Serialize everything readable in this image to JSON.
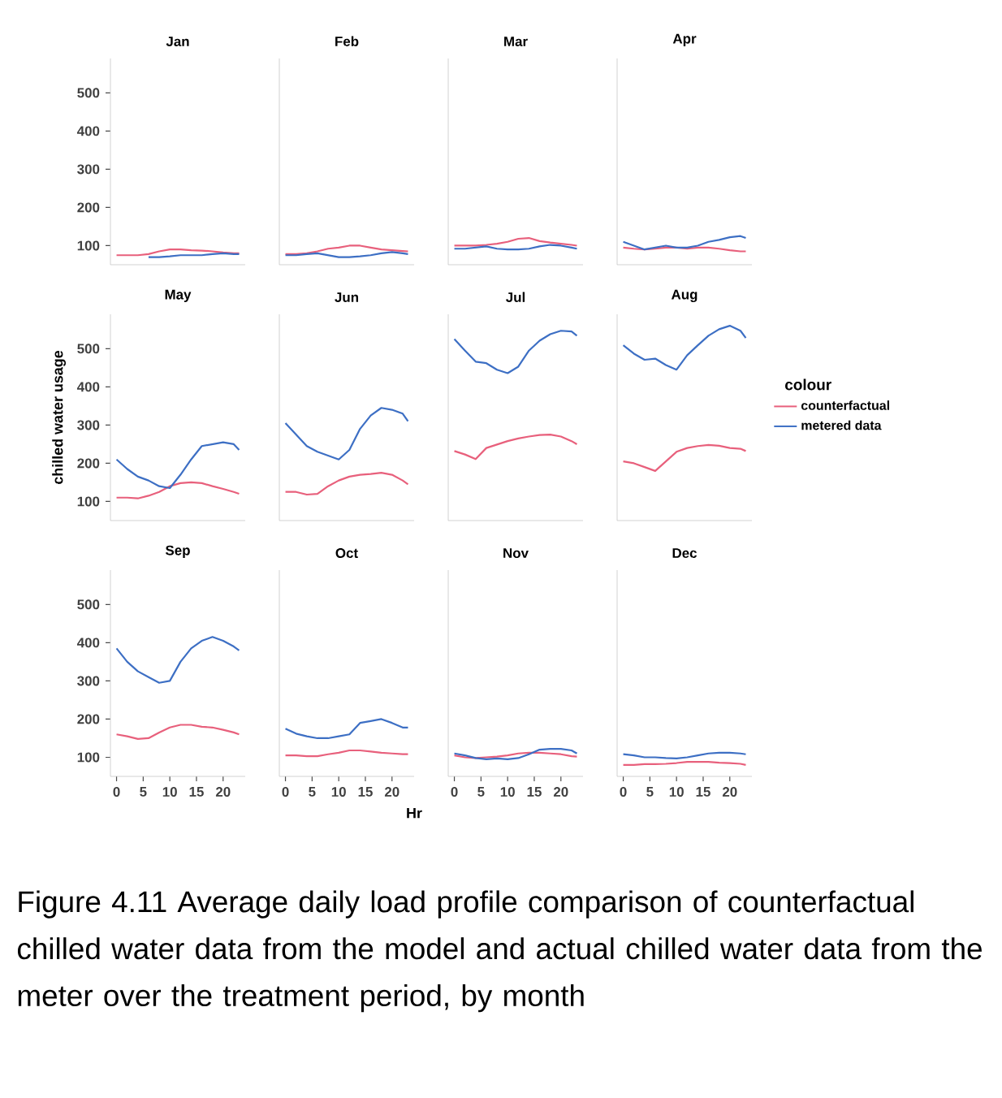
{
  "chart_data": [
    {
      "type": "line",
      "title": "Jan",
      "x": [
        0,
        2,
        4,
        6,
        8,
        10,
        12,
        14,
        16,
        18,
        20,
        22,
        23
      ],
      "xlim": [
        -1.15,
        24.15
      ],
      "ylim": [
        50,
        590
      ],
      "xticks": [
        0,
        5,
        10,
        15,
        20
      ],
      "yticks": [
        100,
        200,
        300,
        400,
        500
      ],
      "tick_labels": "y",
      "series": [
        {
          "color": "#e8607c",
          "values": [
            75,
            75,
            75,
            78,
            85,
            90,
            90,
            88,
            87,
            85,
            82,
            80,
            80
          ]
        },
        {
          "color": "#3d6fc4",
          "values": [
            null,
            null,
            null,
            70,
            70,
            72,
            75,
            75,
            75,
            78,
            80,
            78,
            78
          ]
        }
      ]
    },
    {
      "type": "line",
      "title": "Feb",
      "x": [
        0,
        2,
        4,
        6,
        8,
        10,
        12,
        14,
        16,
        18,
        20,
        22,
        23
      ],
      "xlim": [
        -1.15,
        24.15
      ],
      "ylim": [
        50,
        590
      ],
      "xticks": [
        0,
        5,
        10,
        15,
        20
      ],
      "yticks": [
        100,
        200,
        300,
        400,
        500
      ],
      "tick_labels": false,
      "series": [
        {
          "color": "#e8607c",
          "values": [
            78,
            78,
            80,
            85,
            92,
            95,
            100,
            100,
            95,
            90,
            88,
            86,
            85
          ]
        },
        {
          "color": "#3d6fc4",
          "values": [
            75,
            75,
            78,
            80,
            75,
            70,
            70,
            72,
            75,
            80,
            83,
            80,
            78
          ]
        }
      ]
    },
    {
      "type": "line",
      "title": "Mar",
      "x": [
        0,
        2,
        4,
        6,
        8,
        10,
        12,
        14,
        16,
        18,
        20,
        22,
        23
      ],
      "xlim": [
        -1.15,
        24.15
      ],
      "ylim": [
        50,
        590
      ],
      "xticks": [
        0,
        5,
        10,
        15,
        20
      ],
      "yticks": [
        100,
        200,
        300,
        400,
        500
      ],
      "tick_labels": false,
      "series": [
        {
          "color": "#e8607c",
          "values": [
            100,
            100,
            100,
            102,
            105,
            110,
            118,
            120,
            112,
            108,
            105,
            102,
            100
          ]
        },
        {
          "color": "#3d6fc4",
          "values": [
            92,
            92,
            95,
            98,
            92,
            90,
            90,
            92,
            98,
            102,
            100,
            95,
            92
          ]
        }
      ]
    },
    {
      "type": "line",
      "title": "Apr",
      "x": [
        0,
        2,
        4,
        6,
        8,
        10,
        12,
        14,
        16,
        18,
        20,
        22,
        23
      ],
      "xlim": [
        -1.15,
        24.15
      ],
      "ylim": [
        50,
        590
      ],
      "xticks": [
        0,
        5,
        10,
        15,
        20
      ],
      "yticks": [
        100,
        200,
        300,
        400,
        500
      ],
      "tick_labels": false,
      "series": [
        {
          "color": "#e8607c",
          "values": [
            95,
            92,
            90,
            92,
            95,
            95,
            92,
            95,
            95,
            92,
            88,
            85,
            85
          ]
        },
        {
          "color": "#3d6fc4",
          "values": [
            110,
            100,
            90,
            95,
            100,
            95,
            95,
            100,
            110,
            115,
            122,
            125,
            120
          ]
        }
      ]
    },
    {
      "type": "line",
      "title": "May",
      "ylabel": "chilled water usage",
      "x": [
        0,
        2,
        4,
        6,
        8,
        10,
        12,
        14,
        16,
        18,
        20,
        22,
        23
      ],
      "xlim": [
        -1.15,
        24.15
      ],
      "ylim": [
        50,
        590
      ],
      "xticks": [
        0,
        5,
        10,
        15,
        20
      ],
      "yticks": [
        100,
        200,
        300,
        400,
        500
      ],
      "tick_labels": "y",
      "series": [
        {
          "color": "#e8607c",
          "values": [
            110,
            110,
            108,
            115,
            125,
            140,
            148,
            150,
            148,
            140,
            133,
            125,
            120
          ]
        },
        {
          "color": "#3d6fc4",
          "values": [
            210,
            185,
            165,
            155,
            140,
            135,
            170,
            210,
            245,
            250,
            255,
            250,
            235
          ]
        }
      ]
    },
    {
      "type": "line",
      "title": "Jun",
      "x": [
        0,
        2,
        4,
        6,
        8,
        10,
        12,
        14,
        16,
        18,
        20,
        22,
        23
      ],
      "xlim": [
        -1.15,
        24.15
      ],
      "ylim": [
        50,
        590
      ],
      "xticks": [
        0,
        5,
        10,
        15,
        20
      ],
      "yticks": [
        100,
        200,
        300,
        400,
        500
      ],
      "tick_labels": false,
      "series": [
        {
          "color": "#e8607c",
          "values": [
            125,
            125,
            118,
            120,
            140,
            155,
            165,
            170,
            172,
            175,
            170,
            155,
            145
          ]
        },
        {
          "color": "#3d6fc4",
          "values": [
            305,
            275,
            245,
            230,
            220,
            210,
            235,
            290,
            325,
            345,
            340,
            330,
            310
          ]
        }
      ]
    },
    {
      "type": "line",
      "title": "Jul",
      "x": [
        0,
        2,
        4,
        6,
        8,
        10,
        12,
        14,
        16,
        18,
        20,
        22,
        23
      ],
      "xlim": [
        -1.15,
        24.15
      ],
      "ylim": [
        50,
        590
      ],
      "xticks": [
        0,
        5,
        10,
        15,
        20
      ],
      "yticks": [
        100,
        200,
        300,
        400,
        500
      ],
      "tick_labels": false,
      "series": [
        {
          "color": "#e8607c",
          "values": [
            232,
            223,
            211,
            240,
            249,
            258,
            265,
            270,
            274,
            275,
            270,
            258,
            250
          ]
        },
        {
          "color": "#3d6fc4",
          "values": [
            525,
            495,
            466,
            462,
            445,
            436,
            453,
            495,
            521,
            538,
            547,
            545,
            534
          ]
        }
      ]
    },
    {
      "type": "line",
      "title": "Aug",
      "legend_title": "colour",
      "legend": "right",
      "x": [
        0,
        2,
        4,
        6,
        8,
        10,
        12,
        14,
        16,
        18,
        20,
        22,
        23
      ],
      "xlim": [
        -1.15,
        24.15
      ],
      "ylim": [
        50,
        590
      ],
      "xticks": [
        0,
        5,
        10,
        15,
        20
      ],
      "yticks": [
        100,
        200,
        300,
        400,
        500
      ],
      "tick_labels": false,
      "series": [
        {
          "name": "counterfactual",
          "color": "#e8607c",
          "values": [
            205,
            200,
            190,
            180,
            205,
            230,
            240,
            245,
            248,
            246,
            240,
            238,
            232
          ]
        },
        {
          "name": "metered data",
          "color": "#3d6fc4",
          "values": [
            509,
            487,
            471,
            474,
            457,
            445,
            483,
            509,
            534,
            551,
            560,
            547,
            528
          ]
        }
      ]
    },
    {
      "type": "line",
      "title": "Sep",
      "x": [
        0,
        2,
        4,
        6,
        8,
        10,
        12,
        14,
        16,
        18,
        20,
        22,
        23
      ],
      "xlim": [
        -1.15,
        24.15
      ],
      "ylim": [
        50,
        590
      ],
      "xticks": [
        0,
        5,
        10,
        15,
        20
      ],
      "yticks": [
        100,
        200,
        300,
        400,
        500
      ],
      "series": [
        {
          "color": "#e8607c",
          "values": [
            160,
            155,
            148,
            150,
            165,
            178,
            185,
            185,
            180,
            178,
            172,
            165,
            160
          ]
        },
        {
          "color": "#3d6fc4",
          "values": [
            385,
            350,
            325,
            310,
            295,
            300,
            350,
            385,
            405,
            415,
            405,
            390,
            380
          ]
        }
      ]
    },
    {
      "type": "line",
      "title": "Oct",
      "xlabel": "Hr",
      "x": [
        0,
        2,
        4,
        6,
        8,
        10,
        12,
        14,
        16,
        18,
        20,
        22,
        23
      ],
      "xlim": [
        -1.15,
        24.15
      ],
      "ylim": [
        50,
        590
      ],
      "xticks": [
        0,
        5,
        10,
        15,
        20
      ],
      "yticks": [
        100,
        200,
        300,
        400,
        500
      ],
      "tick_labels": "x",
      "series": [
        {
          "color": "#e8607c",
          "values": [
            105,
            105,
            103,
            103,
            108,
            112,
            118,
            118,
            115,
            112,
            110,
            108,
            108
          ]
        },
        {
          "color": "#3d6fc4",
          "values": [
            175,
            162,
            155,
            150,
            150,
            155,
            160,
            190,
            195,
            200,
            190,
            178,
            178
          ]
        }
      ]
    },
    {
      "type": "line",
      "title": "Nov",
      "x": [
        0,
        2,
        4,
        6,
        8,
        10,
        12,
        14,
        16,
        18,
        20,
        22,
        23
      ],
      "xlim": [
        -1.15,
        24.15
      ],
      "ylim": [
        50,
        590
      ],
      "xticks": [
        0,
        5,
        10,
        15,
        20
      ],
      "yticks": [
        100,
        200,
        300,
        400,
        500
      ],
      "tick_labels": "x",
      "series": [
        {
          "color": "#e8607c",
          "values": [
            105,
            100,
            98,
            100,
            102,
            105,
            110,
            112,
            112,
            110,
            108,
            103,
            102
          ]
        },
        {
          "color": "#3d6fc4",
          "values": [
            110,
            105,
            98,
            95,
            97,
            95,
            98,
            108,
            120,
            122,
            122,
            118,
            110
          ]
        }
      ]
    },
    {
      "type": "line",
      "title": "Dec",
      "annotations": [
        "Figure 4.11 Average daily load profile comparison of counterfactual chilled water data from the model and actual chilled water data from the meter over the treatment period, by month"
      ],
      "x": [
        0,
        2,
        4,
        6,
        8,
        10,
        12,
        14,
        16,
        18,
        20,
        22,
        23
      ],
      "xlim": [
        -1.15,
        24.15
      ],
      "ylim": [
        50,
        590
      ],
      "xticks": [
        0,
        5,
        10,
        15,
        20
      ],
      "yticks": [
        100,
        200,
        300,
        400,
        500
      ],
      "tick_labels": "x",
      "series": [
        {
          "color": "#e8607c",
          "values": [
            80,
            80,
            82,
            82,
            83,
            85,
            88,
            88,
            88,
            86,
            85,
            83,
            80
          ]
        },
        {
          "color": "#3d6fc4",
          "values": [
            108,
            105,
            100,
            100,
            98,
            97,
            100,
            105,
            110,
            112,
            112,
            110,
            108
          ]
        }
      ]
    }
  ]
}
